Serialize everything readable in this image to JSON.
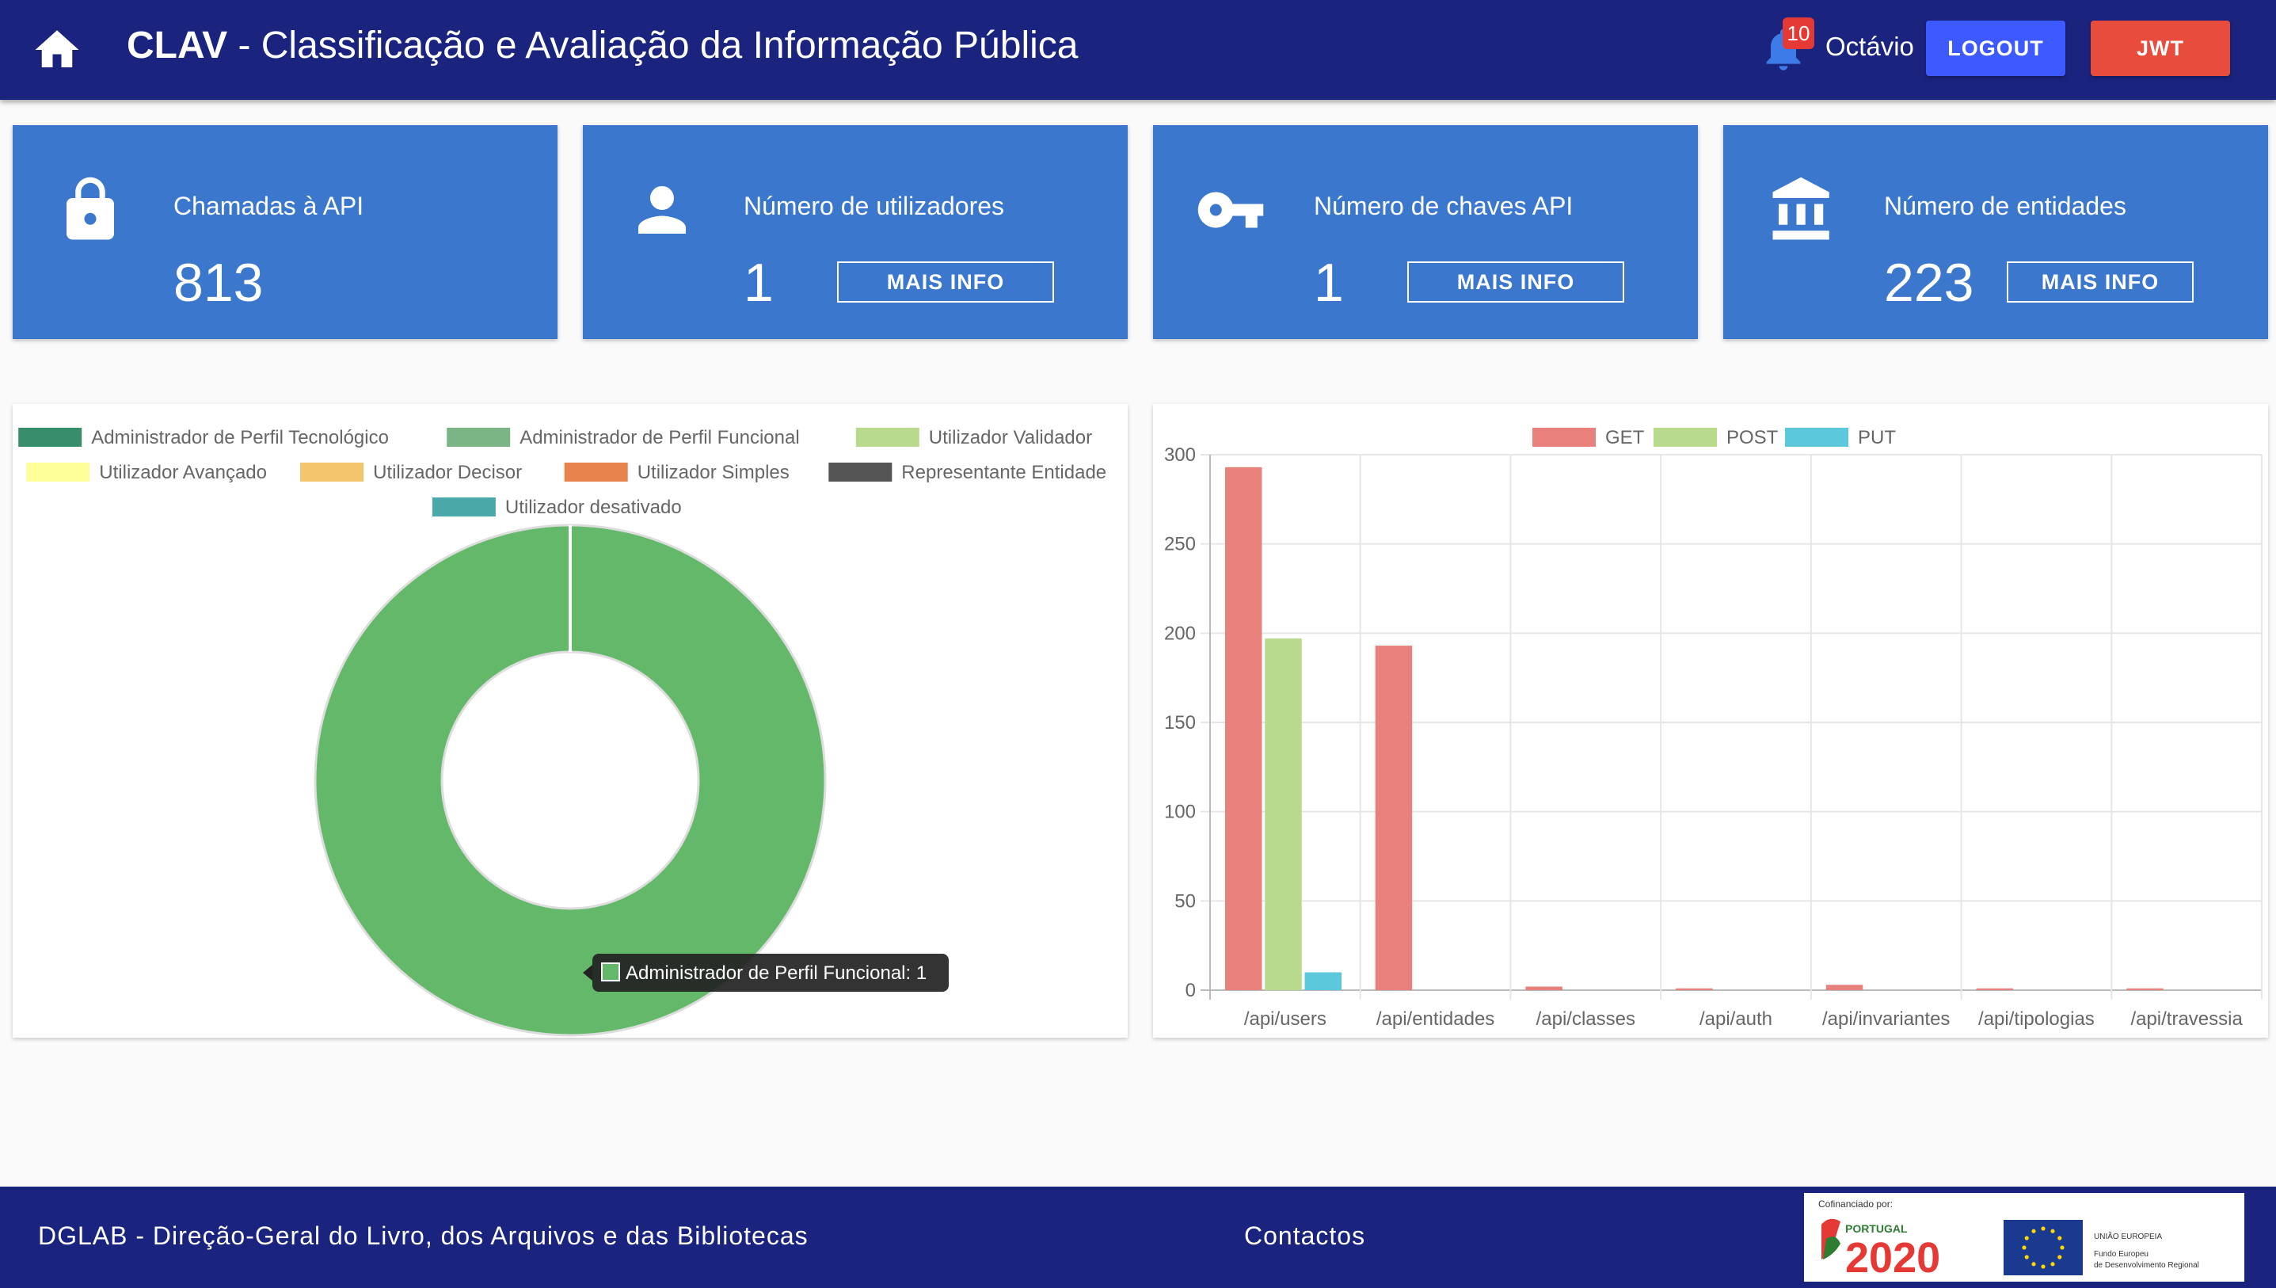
{
  "header": {
    "app_short": "CLAV",
    "app_title": " - Classificação e Avaliação da Informação Pública",
    "notifications": "10",
    "user": "Octávio",
    "logout_label": "LOGOUT",
    "jwt_label": "JWT"
  },
  "stats": [
    {
      "icon": "lock-icon",
      "label": "Chamadas à API",
      "value": "813"
    },
    {
      "icon": "user-icon",
      "label": "Número de utilizadores",
      "value": "1",
      "button": "MAIS INFO"
    },
    {
      "icon": "key-icon",
      "label": "Número de chaves API",
      "value": "1",
      "button": "MAIS INFO"
    },
    {
      "icon": "institution-icon",
      "label": "Número de entidades",
      "value": "223",
      "button": "MAIS INFO"
    }
  ],
  "colors": {
    "header_bg": "#1a237e",
    "card_bg": "#3a77cd",
    "logout": "#3d5afe",
    "jwt": "#e74c3c"
  },
  "chart_data": [
    {
      "type": "pie",
      "variant": "doughnut",
      "labels": [
        "Administrador de Perfil Tecnológico",
        "Administrador de Perfil Funcional",
        "Utilizador Validador",
        "Utilizador Avançado",
        "Utilizador Decisor",
        "Utilizador Simples",
        "Representante Entidade",
        "Utilizador desativado"
      ],
      "values": [
        0,
        1,
        0,
        0,
        0,
        0,
        0,
        0
      ],
      "colors": [
        "#388e6b",
        "#7bb585",
        "#b8da8c",
        "#ffff99",
        "#f5c56b",
        "#e8834e",
        "#555555",
        "#4aa8a8"
      ],
      "ring_color": "#64b869",
      "tooltip": "Administrador de Perfil Funcional: 1",
      "legend": "top"
    },
    {
      "type": "bar",
      "categories": [
        "/api/users",
        "/api/entidades",
        "/api/classes",
        "/api/auth",
        "/api/invariantes",
        "/api/tipologias",
        "/api/travessia"
      ],
      "series": [
        {
          "name": "GET",
          "color": "#e8807c",
          "values": [
            293,
            193,
            2,
            1,
            3,
            1,
            1
          ]
        },
        {
          "name": "POST",
          "color": "#b8da8c",
          "values": [
            197,
            0,
            0,
            0,
            0,
            0,
            0
          ]
        },
        {
          "name": "PUT",
          "color": "#5bc8dc",
          "values": [
            10,
            0,
            0,
            0,
            0,
            0,
            0
          ]
        }
      ],
      "ylim": [
        0,
        300
      ],
      "yticks": [
        0,
        50,
        100,
        150,
        200,
        250,
        300
      ],
      "grid": true,
      "legend": "top"
    }
  ],
  "footer": {
    "org": "DGLAB - Direção-Geral do Livro, dos Arquivos e das Bibliotecas",
    "contacts": "Contactos",
    "cofin_label": "Cofinanciado por:",
    "pt_label": "PORTUGAL",
    "pt_year": "2020",
    "eu_label": "UNIÃO EUROPEIA",
    "eu_fund": "Fundo Europeu",
    "eu_fund2": "de Desenvolvimento Regional"
  }
}
